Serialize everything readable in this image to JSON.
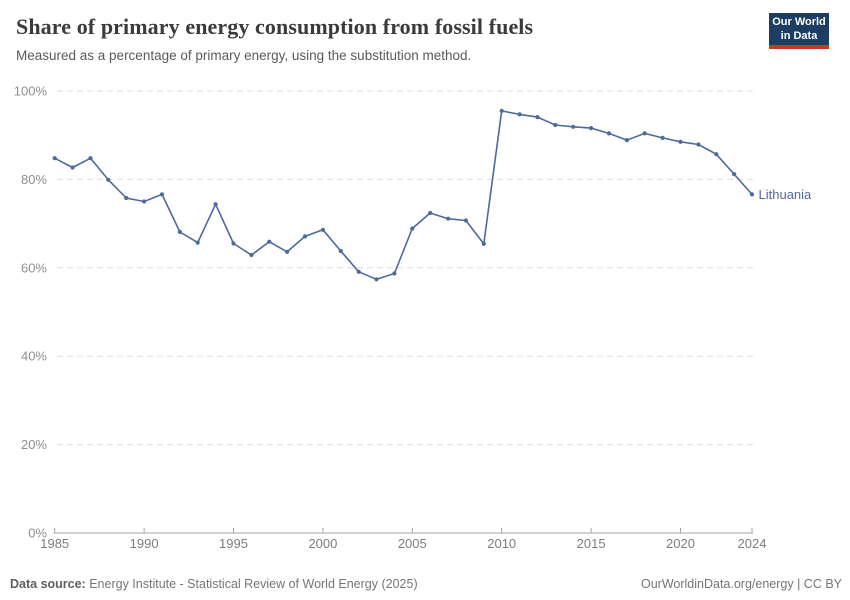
{
  "header": {
    "title": "Share of primary energy consumption from fossil fuels",
    "subtitle": "Measured as a percentage of primary energy, using the substitution method.",
    "logo": {
      "line1": "Our World",
      "line2": "in Data",
      "bg_color": "#1d3d63",
      "accent_color": "#d0352b"
    }
  },
  "chart_data": {
    "type": "line",
    "title": "Share of primary energy consumption from fossil fuels",
    "xlabel": "",
    "ylabel": "",
    "xlim": [
      1985,
      2024
    ],
    "ylim": [
      0,
      100
    ],
    "grid": "horizontal-dashed",
    "legend_position": "end-of-line",
    "yticks": [
      0,
      20,
      40,
      60,
      80,
      100
    ],
    "ytick_suffix": "%",
    "xticks": [
      1985,
      1990,
      1995,
      2000,
      2005,
      2010,
      2015,
      2020,
      2024
    ],
    "x": [
      1985,
      1986,
      1987,
      1988,
      1989,
      1990,
      1991,
      1992,
      1993,
      1994,
      1995,
      1996,
      1997,
      1998,
      1999,
      2000,
      2001,
      2002,
      2003,
      2004,
      2005,
      2006,
      2007,
      2008,
      2009,
      2010,
      2011,
      2012,
      2013,
      2014,
      2015,
      2016,
      2017,
      2018,
      2019,
      2020,
      2021,
      2022,
      2023,
      2024
    ],
    "series": [
      {
        "name": "Lithuania",
        "color": "#4c6a9c",
        "values": [
          84.8,
          82.7,
          84.8,
          79.9,
          75.8,
          75.0,
          76.6,
          68.1,
          65.7,
          74.4,
          65.5,
          62.9,
          65.9,
          63.6,
          67.1,
          68.6,
          63.8,
          59.1,
          57.4,
          58.7,
          68.9,
          72.4,
          71.1,
          70.7,
          65.4,
          95.5,
          94.7,
          94.1,
          92.3,
          91.9,
          91.6,
          90.4,
          88.9,
          90.4,
          89.4,
          88.5,
          87.9,
          85.7,
          81.2,
          76.6
        ]
      }
    ]
  },
  "colors": {
    "grid": "#dedede",
    "axis": "#a5a5a5",
    "line": "#4c6a9c"
  },
  "footer": {
    "source_label": "Data source:",
    "source_text": "Energy Institute - Statistical Review of World Energy (2025)",
    "right_text": "OurWorldinData.org/energy | CC BY"
  }
}
